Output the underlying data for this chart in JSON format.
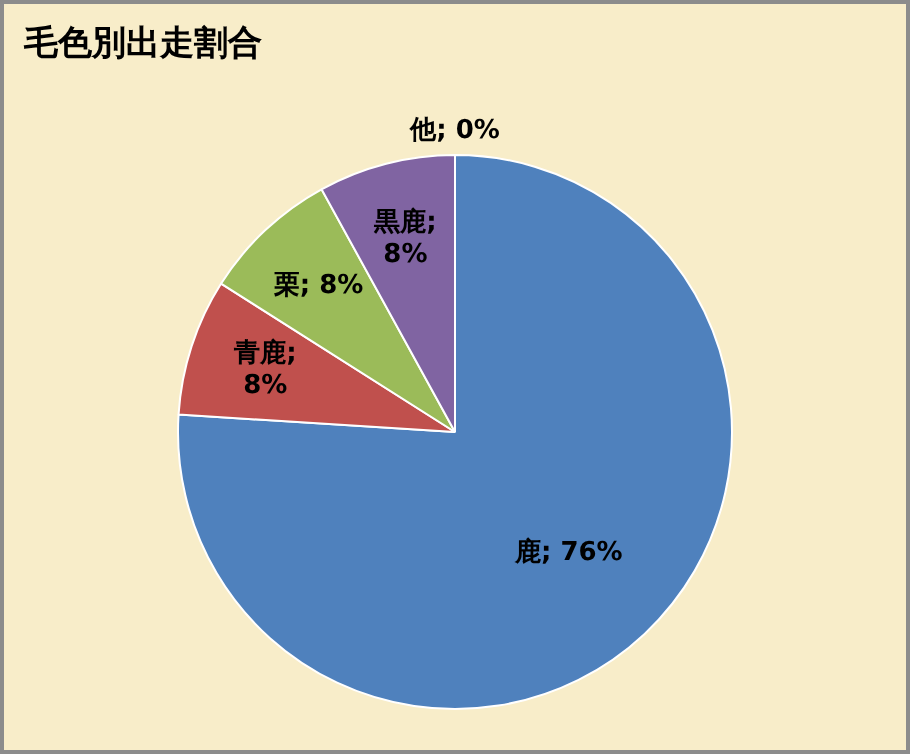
{
  "chart_data": {
    "type": "pie",
    "title": "毛色別出走割合",
    "categories": [
      "鹿",
      "青鹿",
      "栗",
      "黒鹿",
      "他"
    ],
    "values": [
      76,
      8,
      8,
      8,
      0
    ],
    "colors": [
      "#4f81bd",
      "#c0504d",
      "#9bbb59",
      "#8064a2",
      "#4bacc6"
    ],
    "value_labels": [
      "; 76%",
      "; 8%",
      "; 8%",
      "; 8%",
      "; 0%"
    ],
    "legend": false
  }
}
